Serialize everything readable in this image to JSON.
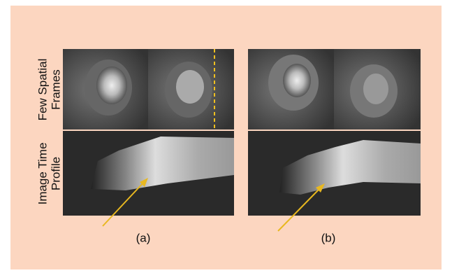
{
  "row_labels": [
    {
      "lines": [
        "Few Spatial",
        "Frames"
      ]
    },
    {
      "lines": [
        "Image Time",
        "Profile"
      ]
    }
  ],
  "captions": [
    "(a)",
    "(b)"
  ]
}
